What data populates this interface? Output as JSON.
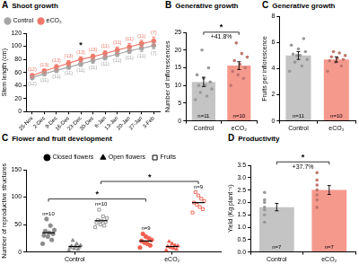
{
  "chart_data": [
    {
      "panel": "A",
      "type": "line",
      "title": "Shoot growth",
      "y_label": "Stem length (cm)",
      "categories": [
        "25-Nov",
        "2-Dec",
        "9-Dec",
        "16-Dec",
        "23-Dec",
        "30-Dec",
        "6-Jan",
        "13-Jan",
        "20-Jan",
        "27-Jan",
        "3-Feb"
      ],
      "series": [
        {
          "name": "Control",
          "color": "#a6a6a6",
          "marker": "circle",
          "values": [
            52,
            58,
            63,
            68,
            73,
            78,
            83,
            88,
            93,
            97,
            101
          ],
          "errors": [
            3,
            3,
            3,
            3,
            4,
            4,
            4,
            4,
            4,
            5,
            5
          ],
          "n_labels": [
            "(12)",
            "(11)",
            "(11)",
            "(11)",
            "(11)",
            "(11)",
            "(11)",
            "(11)",
            "(11)",
            "(11)",
            "(7)"
          ]
        },
        {
          "name": "eCO₂",
          "color": "#f0796a",
          "marker": "circle",
          "values": [
            55,
            62,
            68,
            74,
            80,
            84,
            89,
            94,
            99,
            104,
            108
          ],
          "errors": [
            3,
            3,
            4,
            4,
            4,
            4,
            4,
            5,
            5,
            5,
            6
          ],
          "n_labels": [
            "(12)",
            "(13)",
            "(13)",
            "(13)",
            "(13)",
            "(13)",
            "(11)",
            "(11)",
            "(11)",
            "(11)",
            "(7)"
          ]
        }
      ],
      "ylim": [
        0,
        120
      ],
      "yticks": [
        0,
        20,
        40,
        60,
        80,
        100,
        120
      ],
      "grid": false,
      "legend": "top left",
      "annotations": [
        {
          "text": "*",
          "category": "23-Dec"
        }
      ]
    },
    {
      "panel": "B",
      "type": "bar",
      "title": "Generative growth",
      "y_label": "Number of inflorescences",
      "categories": [
        "Control",
        "eCO₂"
      ],
      "values": [
        11,
        15.6
      ],
      "errors": [
        1.3,
        1.1
      ],
      "points": [
        [
          6,
          7,
          8,
          9,
          10,
          10,
          11,
          12,
          13,
          15,
          20
        ],
        [
          10,
          12,
          13,
          14,
          15,
          16,
          17,
          18,
          19,
          22
        ]
      ],
      "n_labels": [
        "n=11",
        "n=10"
      ],
      "colors": [
        "#c4c4c4",
        "#f6998d"
      ],
      "ylim": [
        0,
        25
      ],
      "yticks": [
        0,
        5,
        10,
        15,
        20,
        25
      ],
      "grid": false,
      "comparison": {
        "significance": "*",
        "change": "+41.8%"
      }
    },
    {
      "panel": "C",
      "type": "bar",
      "title": "Generative growth",
      "y_label": "Fruits per inflorescence",
      "categories": [
        "Control",
        "eCO₂"
      ],
      "values": [
        5.0,
        4.7
      ],
      "errors": [
        0.3,
        0.2
      ],
      "points": [
        [
          3.8,
          4.2,
          4.5,
          4.7,
          5.0,
          5.1,
          5.3,
          5.5,
          5.8,
          6.3,
          5.0
        ],
        [
          3.8,
          4.2,
          4.5,
          4.6,
          4.7,
          4.8,
          4.9,
          5.0,
          5.2,
          5.3
        ]
      ],
      "n_labels": [
        "n=11",
        "n=10"
      ],
      "colors": [
        "#c4c4c4",
        "#f6998d"
      ],
      "ylim": [
        0,
        8
      ],
      "yticks": [
        0,
        2,
        4,
        6,
        8
      ],
      "grid": false
    },
    {
      "panel": "C",
      "type": "scatter",
      "title": "Flower and fruit development",
      "y_label": "Number of reproductive structures",
      "categories": [
        "Control",
        "eCO₂"
      ],
      "colors": [
        "#8c8c8c",
        "#f0604f"
      ],
      "series": [
        {
          "name": "Closed flowers",
          "color": "#000000",
          "marker": "circle",
          "values": [
            35,
            20
          ],
          "points": [
            [
              15,
              22,
              28,
              30,
              33,
              35,
              38,
              40,
              48,
              60
            ],
            [
              8,
              12,
              15,
              17,
              20,
              22,
              25,
              28,
              33
            ]
          ],
          "n_labels": [
            "n=10",
            "n=9"
          ],
          "significance": "*"
        },
        {
          "name": "Open flowers",
          "color": "#000000",
          "marker": "triangle",
          "values": [
            10,
            10
          ],
          "points": [
            [
              3,
              5,
              6,
              8,
              9,
              10,
              11,
              12,
              15,
              21
            ],
            [
              3,
              5,
              7,
              8,
              10,
              11,
              12,
              15,
              19
            ]
          ]
        },
        {
          "name": "Fruits",
          "color": "#000000",
          "marker": "open_square",
          "values": [
            57,
            90
          ],
          "points": [
            [
              45,
              48,
              50,
              53,
              55,
              57,
              58,
              62,
              65,
              77
            ],
            [
              72,
              78,
              82,
              86,
              90,
              93,
              97,
              103,
              109
            ]
          ],
          "n_labels": [
            "n=10",
            "n=9"
          ],
          "significance": "*"
        }
      ],
      "ylim": [
        0,
        150
      ],
      "yticks": [
        0,
        50,
        100,
        150
      ],
      "grid": false,
      "legend": "top"
    },
    {
      "panel": "D",
      "type": "bar",
      "title": "Productivity",
      "y_label": "Yield (Kg plant⁻¹)",
      "categories": [
        "Control",
        "eCO₂"
      ],
      "values": [
        1.81,
        2.5
      ],
      "errors": [
        0.15,
        0.18
      ],
      "points": [
        [
          1.2,
          1.5,
          1.7,
          1.8,
          2.0,
          2.1,
          2.4
        ],
        [
          1.8,
          2.1,
          2.3,
          2.5,
          2.7,
          2.9,
          3.2
        ]
      ],
      "n_labels": [
        "n=7",
        "n=7"
      ],
      "colors": [
        "#c4c4c4",
        "#f6998d"
      ],
      "ylim": [
        0,
        3.5
      ],
      "yticks": [
        {
          "value": 0,
          "label": "0.0"
        },
        0.5,
        {
          "value": 1,
          "label": "1.0"
        },
        1.5,
        {
          "value": 2,
          "label": "2.0"
        },
        2.5,
        {
          "value": 3,
          "label": "3.0"
        },
        3.5
      ],
      "grid": false,
      "comparison": {
        "significance": "*",
        "change": "+37.7%"
      }
    }
  ]
}
